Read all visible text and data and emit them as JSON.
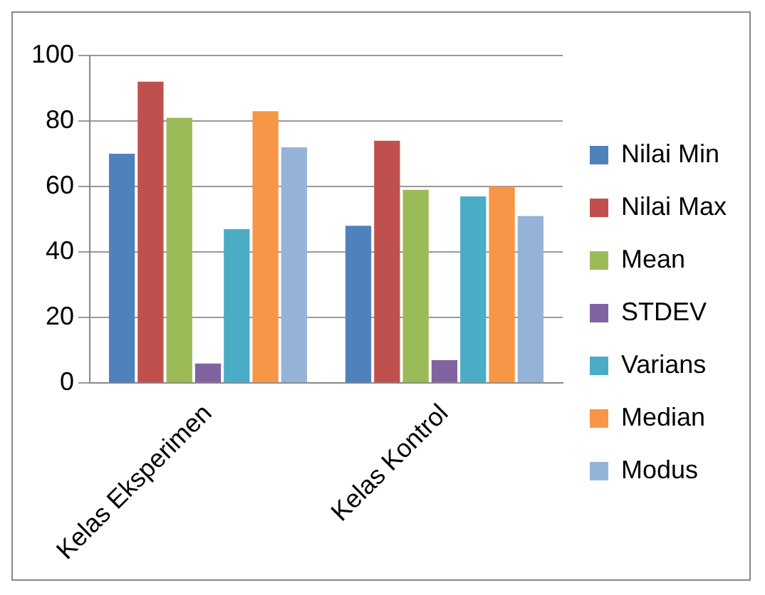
{
  "chart_data": {
    "type": "bar",
    "categories": [
      "Kelas Eksperimen",
      "Kelas Kontrol"
    ],
    "series": [
      {
        "name": "Nilai Min",
        "color": "#4f81bd",
        "values": [
          70,
          48
        ]
      },
      {
        "name": "Nilai Max",
        "color": "#c0504d",
        "values": [
          92,
          74
        ]
      },
      {
        "name": "Mean",
        "color": "#9bbb59",
        "values": [
          81,
          59
        ]
      },
      {
        "name": "STDEV",
        "color": "#8064a2",
        "values": [
          6,
          7
        ]
      },
      {
        "name": "Varians",
        "color": "#4bacc6",
        "values": [
          47,
          57
        ]
      },
      {
        "name": "Median",
        "color": "#f79646",
        "values": [
          83,
          60
        ]
      },
      {
        "name": "Modus",
        "color": "#95b3d7",
        "values": [
          72,
          51
        ]
      }
    ],
    "ylim": [
      0,
      100
    ],
    "yticks": [
      0,
      20,
      40,
      60,
      80,
      100
    ],
    "grid": "y",
    "legend": "right"
  }
}
